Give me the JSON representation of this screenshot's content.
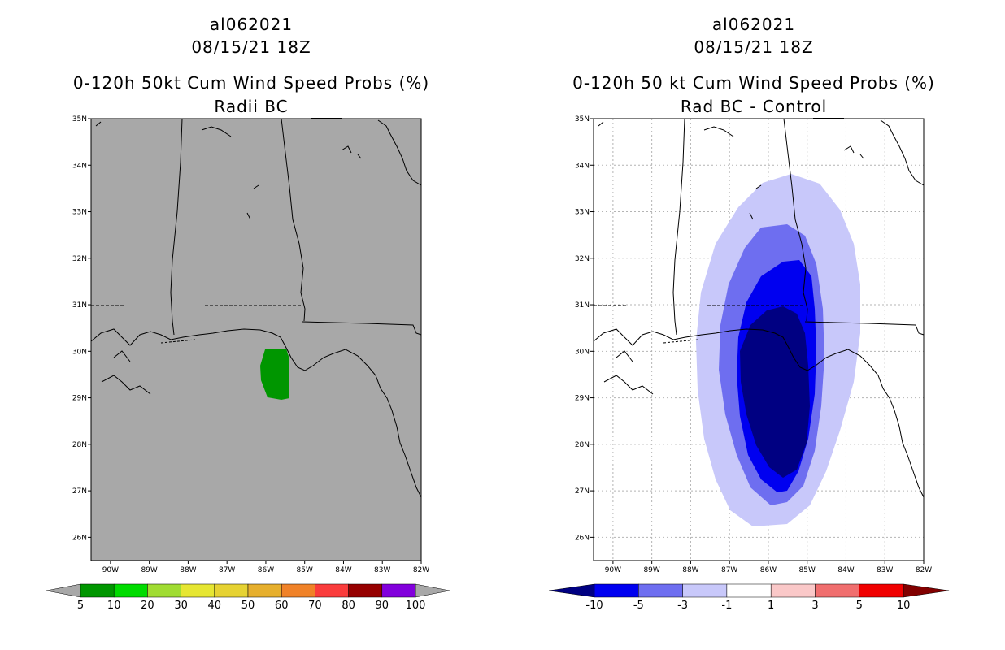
{
  "left_panel": {
    "storm_id": "al062021",
    "datetime": "08/15/21 18Z",
    "title": "0-120h 50kt Cum Wind Speed Probs (%)",
    "subtitle": "Radii BC",
    "background_color": "#a8a8a8",
    "colorbar": {
      "colors": [
        "#009600",
        "#00dc00",
        "#a0dc32",
        "#e6e632",
        "#e6d232",
        "#e6af2d",
        "#f08228",
        "#fa3c3c",
        "#960000",
        "#8200dc"
      ],
      "labels": [
        "5",
        "10",
        "20",
        "30",
        "40",
        "50",
        "60",
        "70",
        "80",
        "90",
        "100"
      ]
    }
  },
  "right_panel": {
    "storm_id": "al062021",
    "datetime": "08/15/21 18Z",
    "title": "0-120h 50 kt Cum Wind Speed Probs (%)",
    "subtitle": "Rad BC - Control",
    "background_color": "#ffffff",
    "colorbar": {
      "colors": [
        "#000082",
        "#0000f0",
        "#6e6ef0",
        "#c8c8fa",
        "#ffffff",
        "#fac8c8",
        "#f06e6e",
        "#f00000",
        "#820000"
      ],
      "labels": [
        "-10",
        "-5",
        "-3",
        "-1",
        "1",
        "3",
        "5",
        "10"
      ]
    }
  },
  "map_axes": {
    "lat_labels": [
      "35N",
      "34N",
      "33N",
      "32N",
      "31N",
      "30N",
      "29N",
      "28N",
      "27N",
      "26N"
    ],
    "lon_labels": [
      "90W",
      "89W",
      "88W",
      "87W",
      "86W",
      "85W",
      "84W",
      "83W",
      "82W"
    ]
  }
}
